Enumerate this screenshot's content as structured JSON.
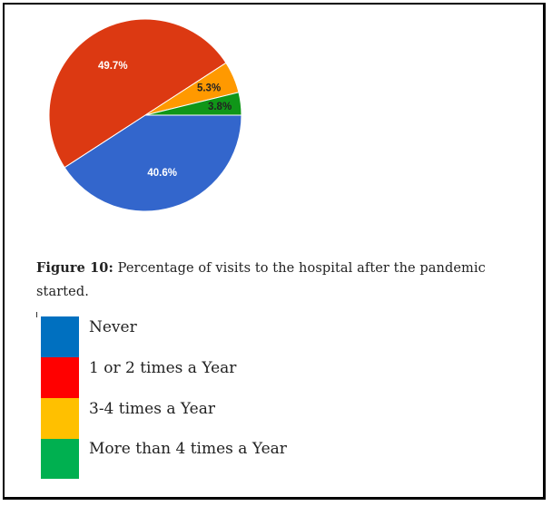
{
  "chart_data": {
    "type": "pie",
    "slices": [
      {
        "value": 40.6,
        "label": "40.6%",
        "color": "#3366cc",
        "label_color": "#ffffff"
      },
      {
        "value": 49.7,
        "label": "49.7%",
        "color": "#dc3912",
        "label_color": "#ffffff"
      },
      {
        "value": 5.3,
        "label": "5.3%",
        "color": "#ff9900",
        "label_color": "#222222"
      },
      {
        "value": 3.8,
        "label": "3.8%",
        "color": "#109618",
        "label_color": "#222222"
      }
    ]
  },
  "caption": {
    "label": "Figure 10:",
    "text": " Percentage of visits to the hospital after the pandemic started."
  },
  "legend": [
    {
      "label": "Never",
      "color": "#0070c0"
    },
    {
      "label": "1 or 2 times a Year",
      "color": "#ff0000"
    },
    {
      "label": "3-4 times a Year",
      "color": "#ffc000"
    },
    {
      "label": "More than 4 times a Year",
      "color": "#00b050"
    }
  ]
}
